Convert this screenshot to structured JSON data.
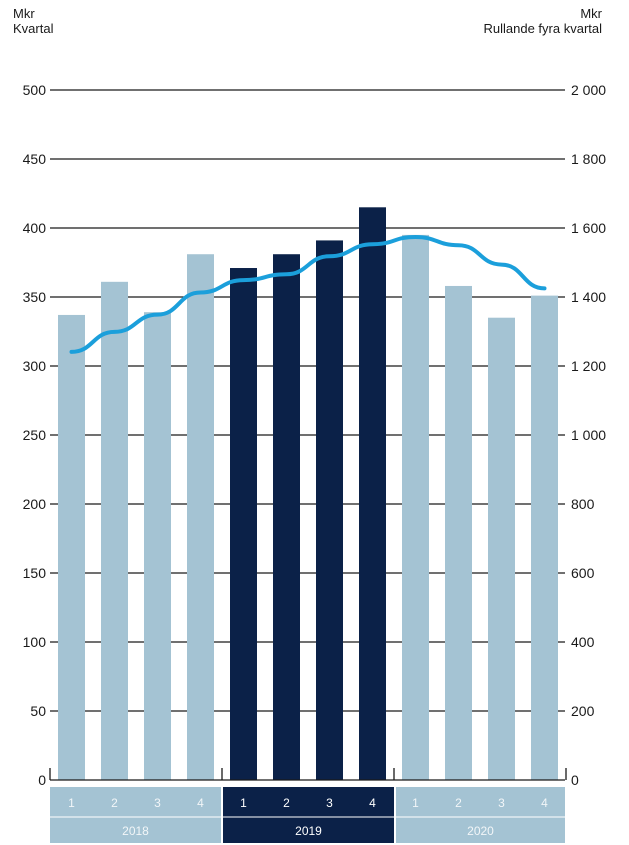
{
  "header": {
    "left_unit": "Mkr",
    "left_label": "Kvartal",
    "right_unit": "Mkr",
    "right_label": "Rullande fyra kvartal"
  },
  "colors": {
    "bar_light": "#a4c3d3",
    "bar_dark": "#0b2148",
    "line": "#1b9fdb",
    "axis": "#1a1a1a"
  },
  "chart_data": {
    "type": "bar",
    "categories": [
      "1",
      "2",
      "3",
      "4",
      "1",
      "2",
      "3",
      "4",
      "1",
      "2",
      "3",
      "4"
    ],
    "years": [
      {
        "label": "2018",
        "quarters": [
          "1",
          "2",
          "3",
          "4"
        ],
        "highlight": false
      },
      {
        "label": "2019",
        "quarters": [
          "1",
          "2",
          "3",
          "4"
        ],
        "highlight": true
      },
      {
        "label": "2020",
        "quarters": [
          "1",
          "2",
          "3",
          "4"
        ],
        "highlight": false
      }
    ],
    "series": [
      {
        "axis": "left",
        "type": "bar",
        "values": [
          337,
          361,
          339,
          381,
          371,
          381,
          391,
          415,
          395,
          358,
          335,
          351
        ]
      },
      {
        "axis": "right",
        "type": "line",
        "values": [
          1241,
          1299,
          1349,
          1413,
          1449,
          1466,
          1518,
          1553,
          1574,
          1550,
          1494,
          1425
        ]
      }
    ],
    "left_axis": {
      "ylim": [
        0,
        500
      ],
      "ticks": [
        "0",
        "50",
        "100",
        "150",
        "200",
        "250",
        "300",
        "350",
        "400",
        "450",
        "500"
      ]
    },
    "right_axis": {
      "ylim": [
        0,
        2000
      ],
      "ticks": [
        "0",
        "200",
        "400",
        "600",
        "800",
        "1 000",
        "1 200",
        "1 400",
        "1 600",
        "1 800",
        "2 000"
      ]
    },
    "grid": true
  }
}
